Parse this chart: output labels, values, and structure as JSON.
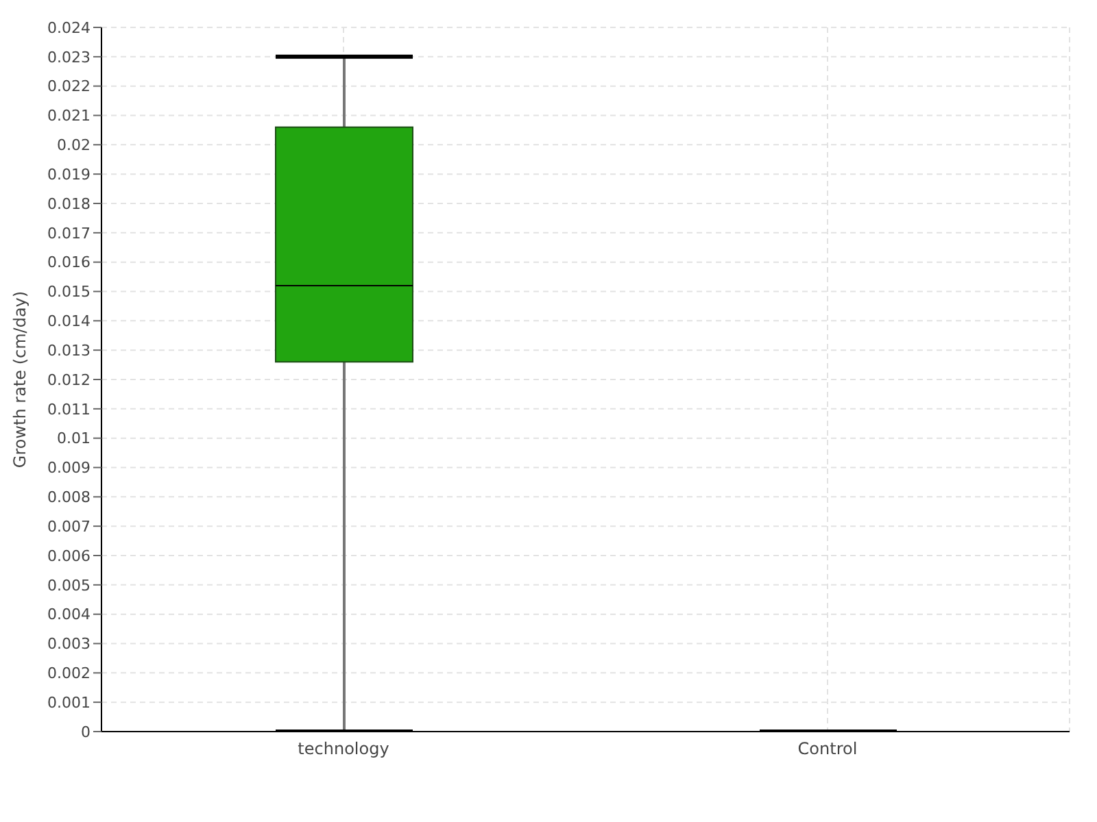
{
  "chart_data": {
    "type": "box",
    "ylabel": "Growth rate (cm/day)",
    "categories": [
      "technology",
      "Control"
    ],
    "colors": [
      "#22a510",
      "#000000"
    ],
    "boxes": [
      {
        "low": 0,
        "q1": 0.0126,
        "median": 0.0152,
        "q3": 0.0206,
        "high": 0.023
      },
      {
        "low": 0,
        "q1": 0,
        "median": 0,
        "q3": 0,
        "high": 0
      }
    ],
    "ylim": [
      0,
      0.024
    ],
    "yticks": [
      0,
      0.001,
      0.002,
      0.003,
      0.004,
      0.005,
      0.006,
      0.007,
      0.008,
      0.009,
      0.01,
      0.011,
      0.012,
      0.013,
      0.014,
      0.015,
      0.016,
      0.017,
      0.018,
      0.019,
      0.02,
      0.021,
      0.022,
      0.023,
      0.024
    ],
    "grid": true
  }
}
